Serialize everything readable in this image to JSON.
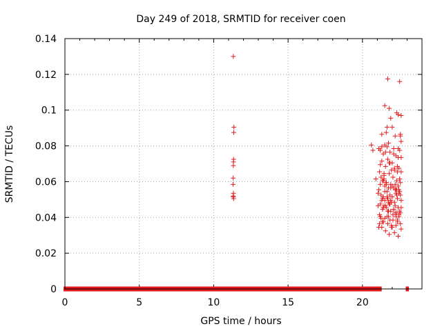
{
  "chart_data": {
    "type": "scatter",
    "title": "Day 249 of 2018, SRMTID for receiver coen",
    "xlabel": "GPS time / hours",
    "ylabel": "SRMTID / TECUs",
    "xlim": [
      0,
      24
    ],
    "ylim": [
      0,
      0.14
    ],
    "xticks": [
      0,
      5,
      10,
      15,
      20
    ],
    "xtick_labels": [
      "0",
      "5",
      "10",
      "15",
      "20"
    ],
    "yticks": [
      0,
      0.02,
      0.04,
      0.06,
      0.08,
      0.1,
      0.12,
      0.14
    ],
    "ytick_labels": [
      "0",
      "0.02",
      "0.04",
      "0.06",
      "0.08",
      "0.1",
      "0.12",
      "0.14"
    ],
    "grid": true,
    "marker": "plus",
    "color": "#e41a1c",
    "series": [
      {
        "name": "SRMTID",
        "zero_baseline_ranges": [
          [
            0.0,
            11.28
          ],
          [
            11.4,
            20.95
          ],
          [
            21.1,
            21.2
          ],
          [
            23.0,
            23.03
          ]
        ],
        "x": [
          11.32,
          11.36,
          11.35,
          11.34,
          11.33,
          11.32,
          11.31,
          11.3,
          11.33,
          11.31,
          11.34,
          11.32,
          21.7,
          22.5,
          21.5,
          22.3,
          21.8,
          22.6,
          21.9,
          22.4,
          22.0,
          21.6,
          22.55,
          21.3,
          22.2,
          21.75,
          20.6,
          21.1,
          21.65,
          22.4,
          21.2,
          22.1,
          21.85,
          22.5,
          21.4,
          22.25,
          21.7,
          22.6,
          21.3,
          22.0,
          20.7,
          21.2,
          21.55,
          22.45,
          21.95,
          22.35,
          21.15,
          22.15,
          21.8,
          22.6,
          21.45,
          22.05,
          21.25,
          22.5,
          20.9,
          21.35,
          21.6,
          22.3,
          21.9,
          22.55,
          21.5,
          22.2,
          21.75,
          22.4,
          21.1,
          22.1,
          21.65,
          22.45,
          21.05,
          21.5,
          21.85,
          22.25,
          21.4,
          22.55,
          21.7,
          22.0,
          21.3,
          22.35,
          21.95,
          22.6,
          21.2,
          22.15,
          21.55,
          21.8,
          22.4,
          21.45,
          22.1,
          21.6,
          22.5,
          21.35,
          22.3,
          21.9,
          21.15,
          22.2,
          21.75,
          22.45,
          21.25,
          21.65,
          22.05,
          21.5,
          22.35,
          21.85,
          22.55,
          21.4,
          22.25,
          21.7,
          21.1,
          21.95,
          22.6,
          21.3,
          21.55,
          22.15,
          21.8,
          22.4,
          21.45,
          22.0,
          21.6,
          22.5,
          21.2,
          22.3,
          21.9,
          21.35,
          22.2,
          21.75,
          22.45,
          21.05,
          21.65,
          22.1,
          21.5,
          22.55,
          21.85,
          22.25,
          21.4,
          22.35,
          21.7,
          21.15,
          22.05,
          21.95,
          22.6,
          21.3,
          21.55,
          22.4,
          21.8,
          22.15,
          21.45,
          22.5,
          21.6,
          22.3,
          21.25,
          21.9,
          22.2,
          21.75,
          22.45,
          21.35,
          22.0,
          21.65,
          22.55,
          21.5,
          22.1,
          21.85,
          22.35,
          21.4,
          22.25,
          21.7,
          22.6,
          21.2
        ],
        "y": [
          0.13,
          0.0905,
          0.0875,
          0.0725,
          0.071,
          0.069,
          0.062,
          0.0585,
          0.0535,
          0.052,
          0.0505,
          0.0515,
          0.1175,
          0.116,
          0.1025,
          0.0985,
          0.101,
          0.097,
          0.0955,
          0.0975,
          0.0905,
          0.0875,
          0.0865,
          0.0865,
          0.0855,
          0.0815,
          0.0805,
          0.0785,
          0.0795,
          0.0785,
          0.0775,
          0.0785,
          0.0765,
          0.0775,
          0.0755,
          0.0745,
          0.0725,
          0.0735,
          0.0715,
          0.0705,
          0.0775,
          0.0695,
          0.0685,
          0.0675,
          0.0665,
          0.0685,
          0.0655,
          0.0665,
          0.0645,
          0.0655,
          0.0635,
          0.0625,
          0.0625,
          0.0615,
          0.0615,
          0.0605,
          0.0595,
          0.0605,
          0.0585,
          0.0595,
          0.0575,
          0.0585,
          0.0565,
          0.0575,
          0.0555,
          0.0565,
          0.0545,
          0.0555,
          0.0535,
          0.0545,
          0.0525,
          0.0535,
          0.0515,
          0.0525,
          0.0505,
          0.0515,
          0.0495,
          0.0505,
          0.0485,
          0.0495,
          0.0475,
          0.0485,
          0.0465,
          0.0475,
          0.0455,
          0.0465,
          0.0445,
          0.0455,
          0.0435,
          0.0445,
          0.0425,
          0.0435,
          0.0415,
          0.0425,
          0.0405,
          0.0415,
          0.0395,
          0.0405,
          0.0385,
          0.0395,
          0.0375,
          0.0385,
          0.0365,
          0.0375,
          0.0355,
          0.0365,
          0.0345,
          0.0355,
          0.0335,
          0.0345,
          0.0325,
          0.0315,
          0.0305,
          0.0295,
          0.0615,
          0.0575,
          0.0595,
          0.0545,
          0.0585,
          0.0525,
          0.0565,
          0.0505,
          0.0555,
          0.0485,
          0.0535,
          0.0465,
          0.0515,
          0.0445,
          0.0495,
          0.0425,
          0.0475,
          0.0405,
          0.0455,
          0.0385,
          0.0435,
          0.0365,
          0.0415,
          0.0345,
          0.0825,
          0.0795,
          0.0765,
          0.0735,
          0.0705,
          0.0675,
          0.0645,
          0.0615,
          0.0585,
          0.0555,
          0.0525,
          0.0495,
          0.0465,
          0.0435,
          0.0405,
          0.0375,
          0.0345,
          0.0905,
          0.0855,
          0.0805,
          0.0755,
          0.0705,
          0.0655,
          0.0605,
          0.0555,
          0.0505,
          0.0455,
          0.0405
        ]
      }
    ]
  }
}
